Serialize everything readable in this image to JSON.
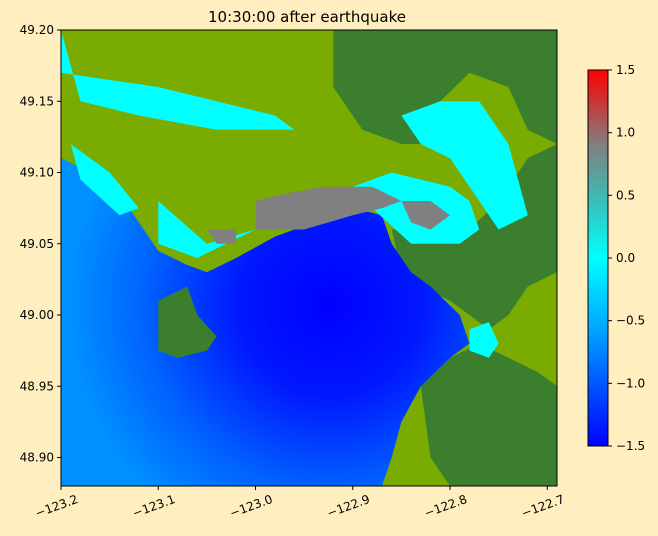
{
  "chart_data": {
    "type": "heatmap",
    "title": "10:30:00 after earthquake",
    "xlim": [
      -123.2,
      -122.69
    ],
    "ylim": [
      48.88,
      49.2
    ],
    "x_ticks": [
      -123.2,
      -123.1,
      -123.0,
      -122.9,
      -122.8,
      -122.7
    ],
    "x_tick_labels": [
      "−123.2",
      "−123.1",
      "−123.0",
      "−122.9",
      "−122.8",
      "−122.7"
    ],
    "y_ticks": [
      48.9,
      48.95,
      49.0,
      49.05,
      49.1,
      49.15,
      49.2
    ],
    "y_tick_labels": [
      "48.90",
      "48.95",
      "49.00",
      "49.05",
      "49.10",
      "49.15",
      "49.20"
    ],
    "colorbar": {
      "range": [
        -1.5,
        1.5
      ],
      "ticks": [
        -1.5,
        -1.0,
        -0.5,
        0.0,
        0.5,
        1.0,
        1.5
      ],
      "tick_labels": [
        "−1.5",
        "−1.0",
        "−0.5",
        "0.0",
        "0.5",
        "1.0",
        "1.5"
      ],
      "stops": [
        {
          "value": -1.5,
          "color": "#0000ff"
        },
        {
          "value": -0.6,
          "color": "#00a0ff"
        },
        {
          "value": 0.0,
          "color": "#00ffff"
        },
        {
          "value": 0.5,
          "color": "#40b8b0"
        },
        {
          "value": 0.9,
          "color": "#808080"
        },
        {
          "value": 1.5,
          "color": "#ff0000"
        }
      ]
    },
    "colors": {
      "land_high": "#3a7e2e",
      "land_low": "#7aab00",
      "deep_water": "#0000ff",
      "shallow_water": "#0080ff",
      "wet": "#00ffff",
      "raised": "#808080"
    },
    "regions": {
      "water": [
        [
          -123.2,
          48.88
        ],
        [
          -123.2,
          49.11
        ],
        [
          -123.17,
          49.1
        ],
        [
          -123.13,
          49.075
        ],
        [
          -123.1,
          49.045
        ],
        [
          -123.07,
          49.035
        ],
        [
          -123.05,
          49.03
        ],
        [
          -123.02,
          49.04
        ],
        [
          -122.98,
          49.055
        ],
        [
          -122.94,
          49.065
        ],
        [
          -122.9,
          49.075
        ],
        [
          -122.87,
          49.07
        ],
        [
          -122.86,
          49.05
        ],
        [
          -122.84,
          49.03
        ],
        [
          -122.82,
          49.02
        ],
        [
          -122.79,
          49.0
        ],
        [
          -122.78,
          48.98
        ],
        [
          -122.8,
          48.97
        ],
        [
          -122.83,
          48.95
        ],
        [
          -122.85,
          48.925
        ],
        [
          -122.86,
          48.9
        ],
        [
          -122.87,
          48.88
        ]
      ],
      "point_roberts": [
        [
          -123.1,
          49.01
        ],
        [
          -123.1,
          48.975
        ],
        [
          -123.08,
          48.97
        ],
        [
          -123.05,
          48.975
        ],
        [
          -123.04,
          48.985
        ],
        [
          -123.06,
          49.0
        ],
        [
          -123.07,
          49.02
        ]
      ],
      "delta": [
        [
          -123.2,
          49.2
        ],
        [
          -123.2,
          49.11
        ],
        [
          -123.17,
          49.1
        ],
        [
          -123.13,
          49.075
        ],
        [
          -123.1,
          49.045
        ],
        [
          -123.07,
          49.035
        ],
        [
          -123.05,
          49.03
        ],
        [
          -123.02,
          49.04
        ],
        [
          -122.98,
          49.055
        ],
        [
          -122.94,
          49.065
        ],
        [
          -122.9,
          49.075
        ],
        [
          -122.87,
          49.07
        ],
        [
          -122.86,
          49.05
        ],
        [
          -122.84,
          49.04
        ],
        [
          -122.8,
          49.045
        ],
        [
          -122.78,
          49.06
        ],
        [
          -122.75,
          49.09
        ],
        [
          -122.72,
          49.12
        ],
        [
          -122.7,
          49.15
        ],
        [
          -122.69,
          49.2
        ]
      ],
      "uplands_north": [
        [
          -122.92,
          49.2
        ],
        [
          -122.92,
          49.16
        ],
        [
          -122.89,
          49.13
        ],
        [
          -122.85,
          49.12
        ],
        [
          -122.82,
          49.12
        ],
        [
          -122.81,
          49.15
        ],
        [
          -122.78,
          49.17
        ],
        [
          -122.74,
          49.16
        ],
        [
          -122.72,
          49.13
        ],
        [
          -122.69,
          49.12
        ],
        [
          -122.69,
          49.2
        ]
      ],
      "surrey_uplands": [
        [
          -122.86,
          49.06
        ],
        [
          -122.85,
          49.03
        ],
        [
          -122.83,
          49.02
        ],
        [
          -122.8,
          49.01
        ],
        [
          -122.78,
          49.0
        ],
        [
          -122.76,
          48.99
        ],
        [
          -122.74,
          49.0
        ],
        [
          -122.72,
          49.02
        ],
        [
          -122.69,
          49.03
        ],
        [
          -122.69,
          49.12
        ],
        [
          -122.72,
          49.11
        ],
        [
          -122.75,
          49.08
        ],
        [
          -122.78,
          49.06
        ],
        [
          -122.82,
          49.06
        ]
      ],
      "white_rock_uplands": [
        [
          -122.83,
          48.95
        ],
        [
          -122.8,
          48.97
        ],
        [
          -122.77,
          48.98
        ],
        [
          -122.74,
          48.97
        ],
        [
          -122.71,
          48.96
        ],
        [
          -122.69,
          48.95
        ],
        [
          -122.69,
          48.88
        ],
        [
          -122.8,
          48.88
        ],
        [
          -122.82,
          48.9
        ]
      ],
      "wet_patches": [
        [
          [
            -123.2,
            49.2
          ],
          [
            -123.2,
            49.17
          ],
          [
            -123.1,
            49.16
          ],
          [
            -123.04,
            49.15
          ],
          [
            -122.98,
            49.14
          ],
          [
            -122.96,
            49.13
          ],
          [
            -123.04,
            49.13
          ],
          [
            -123.12,
            49.14
          ],
          [
            -123.18,
            49.15
          ]
        ],
        [
          [
            -123.19,
            49.12
          ],
          [
            -123.18,
            49.095
          ],
          [
            -123.14,
            49.07
          ],
          [
            -123.12,
            49.075
          ],
          [
            -123.15,
            49.1
          ],
          [
            -123.17,
            49.11
          ]
        ],
        [
          [
            -123.1,
            49.08
          ],
          [
            -123.1,
            49.05
          ],
          [
            -123.06,
            49.04
          ],
          [
            -123.0,
            49.06
          ],
          [
            -122.95,
            49.075
          ],
          [
            -122.9,
            49.09
          ],
          [
            -122.86,
            49.1
          ],
          [
            -122.8,
            49.09
          ],
          [
            -122.78,
            49.08
          ],
          [
            -122.77,
            49.06
          ],
          [
            -122.79,
            49.05
          ],
          [
            -122.84,
            49.05
          ],
          [
            -122.88,
            49.075
          ],
          [
            -122.94,
            49.07
          ],
          [
            -123.0,
            49.06
          ],
          [
            -123.05,
            49.05
          ]
        ],
        [
          [
            -122.85,
            49.14
          ],
          [
            -122.83,
            49.12
          ],
          [
            -122.8,
            49.11
          ],
          [
            -122.78,
            49.09
          ],
          [
            -122.75,
            49.06
          ],
          [
            -122.72,
            49.07
          ],
          [
            -122.74,
            49.12
          ],
          [
            -122.77,
            49.15
          ],
          [
            -122.81,
            49.15
          ]
        ],
        [
          [
            -122.78,
            48.99
          ],
          [
            -122.76,
            48.995
          ],
          [
            -122.75,
            48.98
          ],
          [
            -122.76,
            48.97
          ],
          [
            -122.78,
            48.975
          ]
        ]
      ],
      "raised_patches": [
        [
          [
            -123.0,
            49.08
          ],
          [
            -123.0,
            49.06
          ],
          [
            -122.95,
            49.06
          ],
          [
            -122.9,
            49.07
          ],
          [
            -122.87,
            49.075
          ],
          [
            -122.85,
            49.08
          ],
          [
            -122.88,
            49.09
          ],
          [
            -122.93,
            49.09
          ],
          [
            -122.97,
            49.085
          ]
        ],
        [
          [
            -122.85,
            49.08
          ],
          [
            -122.84,
            49.065
          ],
          [
            -122.82,
            49.06
          ],
          [
            -122.8,
            49.07
          ],
          [
            -122.82,
            49.08
          ]
        ],
        [
          [
            -123.05,
            49.06
          ],
          [
            -123.04,
            49.05
          ],
          [
            -123.02,
            49.05
          ],
          [
            -123.02,
            49.06
          ]
        ]
      ]
    }
  }
}
